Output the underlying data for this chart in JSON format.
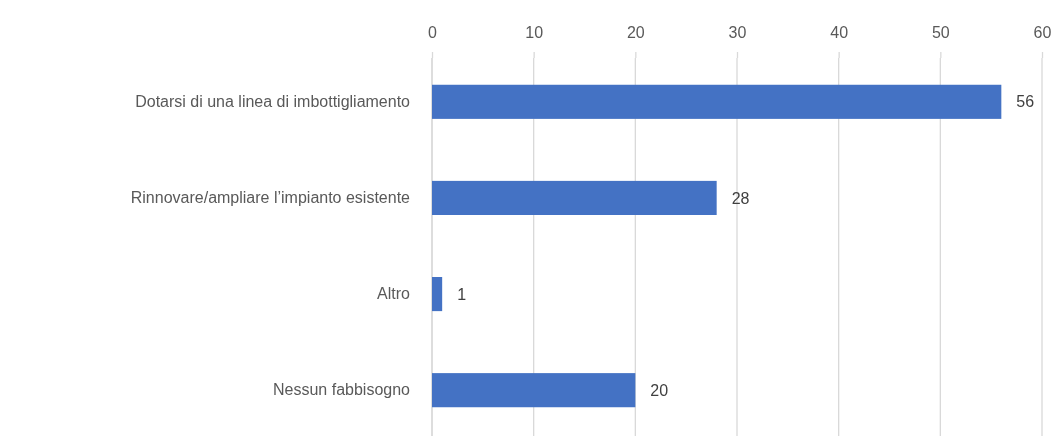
{
  "chart_data": {
    "type": "bar",
    "orientation": "horizontal",
    "categories": [
      "Dotarsi di una linea di imbottigliamento",
      "Rinnovare/ampliare l’impianto esistente",
      "Altro",
      "Nessun fabbisogno"
    ],
    "values": [
      56,
      28,
      1,
      20
    ],
    "color": "#4472c4",
    "xlim": [
      0,
      60
    ],
    "xticks": [
      0,
      10,
      20,
      30,
      40,
      50,
      60
    ],
    "grid": "x",
    "data_labels": true
  }
}
